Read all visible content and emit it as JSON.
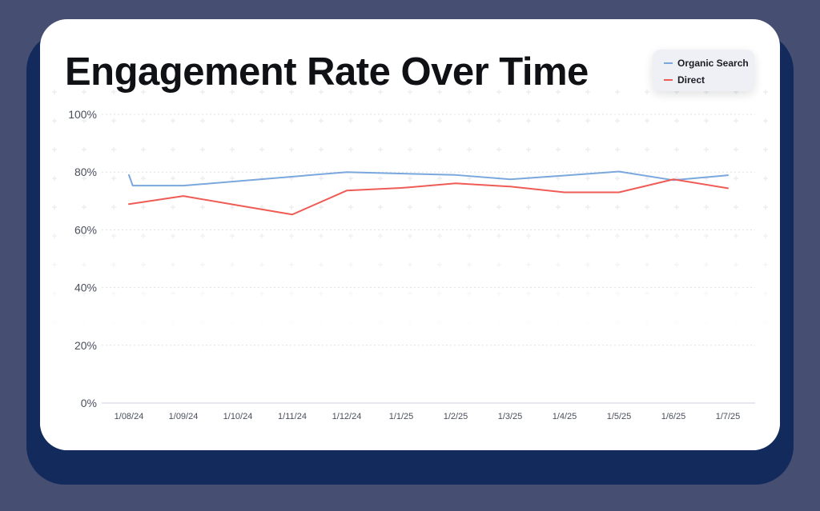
{
  "title": "Engagement Rate Over Time",
  "legend": [
    {
      "label": "Organic Search",
      "color": "#7aa7dc"
    },
    {
      "label": "Direct",
      "color": "#ef5b55"
    }
  ],
  "colors": {
    "background": "#464e72",
    "shadow": "#122b5c",
    "card": "#ffffff",
    "grid": "#dde1ea"
  },
  "chart_data": {
    "type": "line",
    "title": "Engagement Rate Over Time",
    "xlabel": "",
    "ylabel": "",
    "ylim": [
      0,
      100
    ],
    "y_ticks": [
      "0%",
      "20%",
      "40%",
      "60%",
      "80%",
      "100%"
    ],
    "categories": [
      "1/08/24",
      "1/09/24",
      "1/10/24",
      "1/11/24",
      "1/12/24",
      "1/1/25",
      "1/2/25",
      "1/3/25",
      "1/4/25",
      "1/5/25",
      "1/6/25",
      "1/7/25"
    ],
    "grid": true,
    "legend_position": "top-right",
    "series": [
      {
        "name": "Organic Search",
        "color": "#7aa7dc",
        "points": [
          [
            0,
            79
          ],
          [
            0.07,
            75.3
          ],
          [
            1,
            75.3
          ],
          [
            4,
            80
          ],
          [
            6,
            79
          ],
          [
            7,
            77.5
          ],
          [
            8,
            78.8
          ],
          [
            9,
            80.2
          ],
          [
            10,
            77.2
          ],
          [
            11,
            78.9
          ]
        ],
        "values": [
          75.3,
          75.3,
          77,
          78.5,
          80,
          79.5,
          79,
          77.5,
          78.8,
          80.2,
          77.2,
          78.9
        ]
      },
      {
        "name": "Direct",
        "color": "#ef5b55",
        "values": [
          68.9,
          71.7,
          68.5,
          65.3,
          73.6,
          74.5,
          76.1,
          75,
          73,
          73,
          77.5,
          74.4
        ]
      }
    ]
  }
}
